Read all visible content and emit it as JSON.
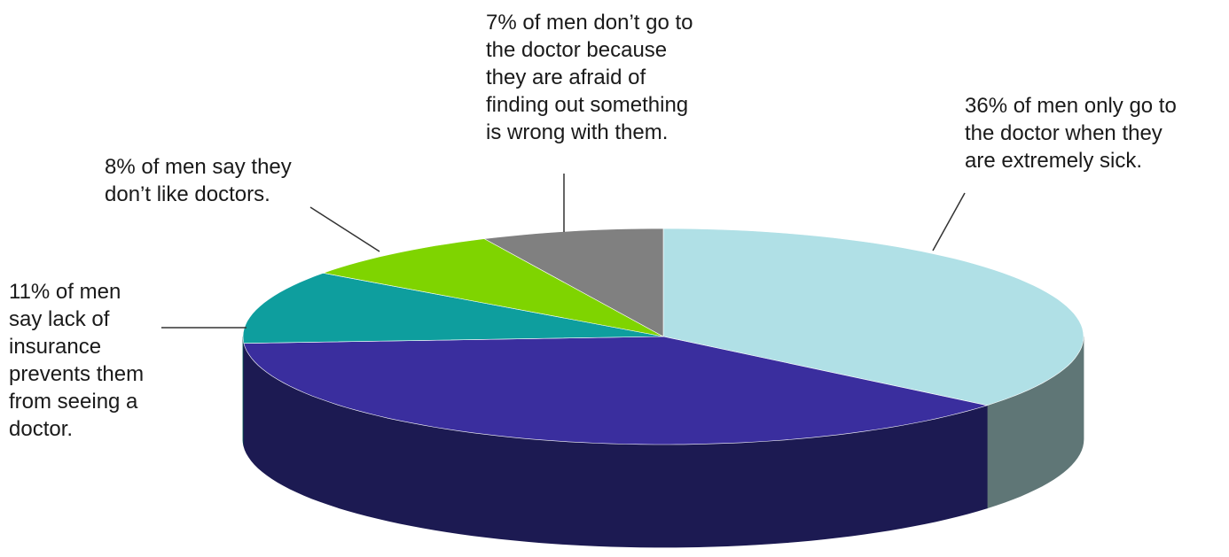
{
  "chart_data": {
    "type": "pie",
    "title": "",
    "three_d": true,
    "slices": [
      {
        "label": "36% of men only go to\nthe doctor when they\nare extremely sick.",
        "value": 36,
        "top_color": "#b0e0e6",
        "side_color": "#5f7676"
      },
      {
        "label": "",
        "value": 38,
        "top_color": "#3a2e9e",
        "side_color": "#1c1a52"
      },
      {
        "label": "11% of men\nsay lack of\ninsurance\nprevents them\nfrom seeing a\ndoctor.",
        "value": 11,
        "top_color": "#0e9e9e",
        "side_color": "#055353"
      },
      {
        "label": "8% of men say they\ndon’t like doctors.",
        "value": 8,
        "top_color": "#7fd400",
        "side_color": "#4a7d00"
      },
      {
        "label": "7% of men don’t go to\nthe doctor because\nthey are afraid of\nfinding out something\nis wrong with them.",
        "value": 7,
        "top_color": "#808080",
        "side_color": "#4d4d4d"
      }
    ],
    "start_angle_deg": -90,
    "direction": "clockwise",
    "legend": "none"
  }
}
